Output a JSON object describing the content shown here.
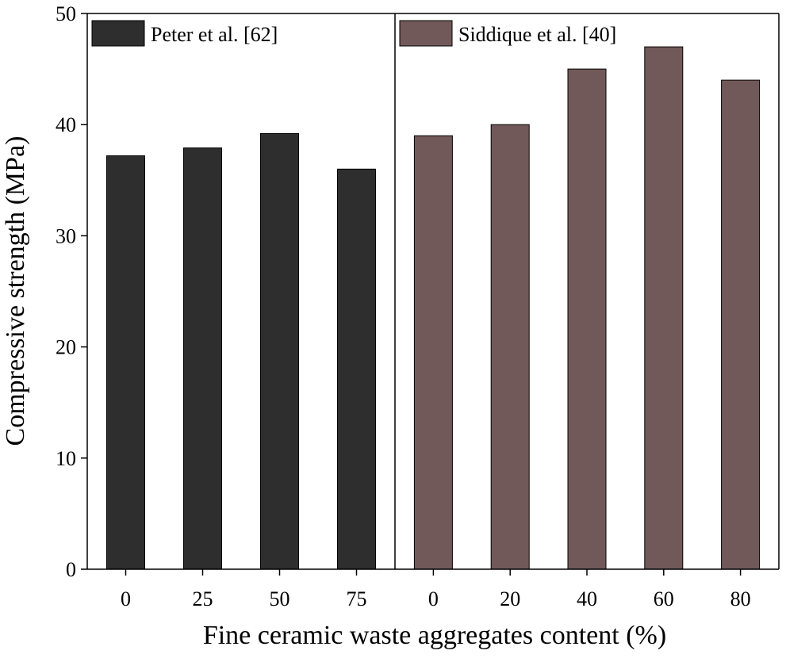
{
  "chart_data": {
    "type": "bar",
    "title": "",
    "ylabel": "Compressive strength (MPa)",
    "xlabel": "Fine ceramic waste aggregates content (%)",
    "ylim": [
      0,
      50
    ],
    "yticks": [
      0,
      10,
      20,
      30,
      40,
      50
    ],
    "grid": false,
    "panels": [
      {
        "legend": "Peter et al. [62]",
        "color": "#2e2e2e",
        "categories": [
          "0",
          "25",
          "50",
          "75"
        ],
        "values": [
          37.2,
          37.9,
          39.2,
          36.0
        ]
      },
      {
        "legend": "Siddique et al. [40]",
        "color": "#725959",
        "categories": [
          "0",
          "20",
          "40",
          "60",
          "80"
        ],
        "values": [
          39.0,
          40.0,
          45.0,
          47.0,
          44.0
        ]
      }
    ]
  }
}
